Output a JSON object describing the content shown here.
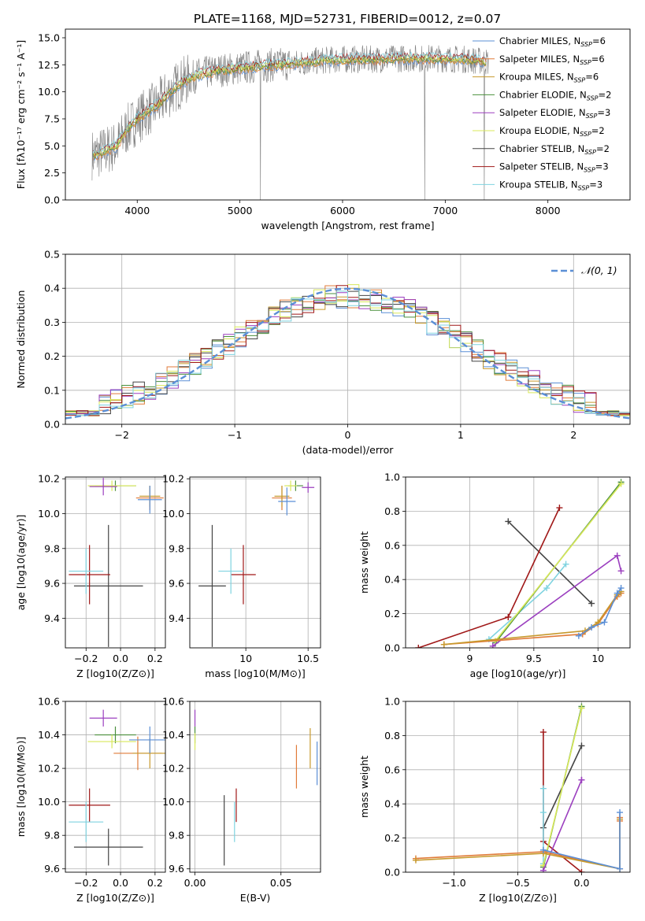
{
  "page_title": "PLATE=1168, MJD=52731, FIBERID=0012, z=0.07",
  "colors": {
    "chabrier_miles": "#5b8fd6",
    "salpeter_miles": "#e07b39",
    "kroupa_miles": "#c79a2e",
    "chabrier_elodie": "#4a8f3c",
    "salpeter_elodie": "#9b3fbf",
    "kroupa_elodie": "#d8e85a",
    "chabrier_stelib": "#444444",
    "salpeter_stelib": "#a01818",
    "kroupa_stelib": "#7fd3e0",
    "data": "#808080",
    "normal": "#5b8fd6",
    "grid": "#b0b0b0"
  },
  "chart_data": [
    {
      "id": "spectrum",
      "type": "line",
      "xlabel": "wavelength [Angstrom, rest frame]",
      "ylabel": "Flux [fλ10⁻¹⁷ erg cm⁻² s⁻¹ A⁻¹]",
      "xlim": [
        3300,
        8800
      ],
      "ylim": [
        0,
        15.8
      ],
      "xticks": [
        4000,
        5000,
        6000,
        7000,
        8000
      ],
      "yticks": [
        0.0,
        2.5,
        5.0,
        7.5,
        10.0,
        12.5,
        15.0
      ],
      "grid": false,
      "legend_position": "right",
      "legend": [
        "Chabrier MILES, N_SSP=6",
        "Salpeter MILES, N_SSP=6",
        "Kroupa MILES, N_SSP=6",
        "Chabrier ELODIE, N_SSP=2",
        "Salpeter ELODIE, N_SSP=3",
        "Kroupa ELODIE, N_SSP=2",
        "Chabrier STELIB, N_SSP=2",
        "Salpeter STELIB, N_SSP=3",
        "Kroupa STELIB, N_SSP=3"
      ],
      "legend_sub": [
        "SSP",
        "SSP",
        "SSP",
        "SSP",
        "SSP",
        "SSP",
        "SSP",
        "SSP",
        "SSP"
      ],
      "legend_prefix": [
        "Chabrier MILES, N",
        "Salpeter MILES, N",
        "Kroupa MILES, N",
        "Chabrier ELODIE, N",
        "Salpeter ELODIE, N",
        "Kroupa ELODIE, N",
        "Chabrier STELIB, N",
        "Salpeter STELIB, N",
        "Kroupa STELIB, N"
      ],
      "legend_suffix": [
        "=6",
        "=6",
        "=6",
        "=2",
        "=3",
        "=2",
        "=2",
        "=3",
        "=3"
      ],
      "continuum": {
        "x": [
          3600,
          3700,
          3800,
          3900,
          4000,
          4100,
          4200,
          4300,
          4400,
          4500,
          4600,
          4800,
          5000,
          5200,
          5500,
          5800,
          6000,
          6300,
          6600,
          6900,
          7200,
          7400
        ],
        "y": [
          4.2,
          4.6,
          5.0,
          6.5,
          7.5,
          8.2,
          8.8,
          9.8,
          10.6,
          11.2,
          11.6,
          12.0,
          12.2,
          12.4,
          12.6,
          12.9,
          13.0,
          13.0,
          13.1,
          13.1,
          13.0,
          12.8
        ]
      },
      "drops": [
        5200,
        6800,
        7380
      ]
    },
    {
      "id": "residuals",
      "type": "line",
      "xlabel": "(data-model)/error",
      "ylabel": "Normed distribution",
      "xlim": [
        -2.5,
        2.5
      ],
      "ylim": [
        0,
        0.5
      ],
      "xticks": [
        -2,
        -1,
        0,
        1,
        2
      ],
      "xtick_labels": [
        "−2",
        "−1",
        "0",
        "1",
        "2"
      ],
      "yticks": [
        0.0,
        0.1,
        0.2,
        0.3,
        0.4,
        0.5
      ],
      "grid": true,
      "legend_position": "top-right",
      "legend": [
        "𝒩(0, 1)"
      ],
      "bin_width": 0.1
    },
    {
      "id": "age_vs_Z",
      "type": "scatter",
      "xlabel": "Z [log10(Z/Z⊙)]",
      "ylabel": "age  [log10(age/yr)]",
      "xlim": [
        -0.32,
        0.26
      ],
      "ylim": [
        9.23,
        10.21
      ],
      "xticks": [
        -0.2,
        0.0,
        0.2
      ],
      "xtick_labels": [
        "−0.2",
        "0.0",
        "0.2"
      ],
      "yticks": [
        9.4,
        9.6,
        9.8,
        10.0,
        10.2
      ],
      "grid": true,
      "points": [
        {
          "series": "chabrier_stelib",
          "x": -0.07,
          "y": 9.585,
          "xerr": 0.2,
          "yerr": 0.35
        },
        {
          "series": "salpeter_stelib",
          "x": -0.18,
          "y": 9.65,
          "xerr": 0.12,
          "yerr": 0.17
        },
        {
          "series": "kroupa_stelib",
          "x": -0.2,
          "y": 9.67,
          "xerr": 0.1,
          "yerr": 0.13
        },
        {
          "series": "chabrier_elodie",
          "x": -0.03,
          "y": 10.16,
          "xerr": 0.12,
          "yerr": 0.03
        },
        {
          "series": "kroupa_elodie",
          "x": -0.05,
          "y": 10.16,
          "xerr": 0.14,
          "yerr": 0.03
        },
        {
          "series": "salpeter_elodie",
          "x": -0.1,
          "y": 10.155,
          "xerr": 0.08,
          "yerr": 0.05
        },
        {
          "series": "salpeter_miles",
          "x": 0.17,
          "y": 10.09,
          "xerr": 0.08,
          "yerr": 0.07
        },
        {
          "series": "kroupa_miles",
          "x": 0.17,
          "y": 10.1,
          "xerr": 0.06,
          "yerr": 0.06
        },
        {
          "series": "chabrier_miles",
          "x": 0.17,
          "y": 10.08,
          "xerr": 0.07,
          "yerr": 0.08
        }
      ]
    },
    {
      "id": "age_vs_mass",
      "type": "scatter",
      "xlabel": "mass [log10(M/M⊙)]",
      "ylabel": "",
      "xlim": [
        9.55,
        10.6
      ],
      "ylim": [
        9.23,
        10.21
      ],
      "xticks": [
        10.0,
        10.5
      ],
      "yticks": [
        9.4,
        9.6,
        9.8,
        10.0,
        10.2
      ],
      "grid": true,
      "points": [
        {
          "series": "chabrier_stelib",
          "x": 9.73,
          "y": 9.585,
          "xerr": 0.11,
          "yerr": 0.35
        },
        {
          "series": "salpeter_stelib",
          "x": 9.98,
          "y": 9.65,
          "xerr": 0.1,
          "yerr": 0.17
        },
        {
          "series": "kroupa_stelib",
          "x": 9.88,
          "y": 9.67,
          "xerr": 0.1,
          "yerr": 0.13
        },
        {
          "series": "chabrier_elodie",
          "x": 10.4,
          "y": 10.16,
          "xerr": 0.06,
          "yerr": 0.03
        },
        {
          "series": "kroupa_elodie",
          "x": 10.36,
          "y": 10.16,
          "xerr": 0.05,
          "yerr": 0.03
        },
        {
          "series": "salpeter_elodie",
          "x": 10.5,
          "y": 10.15,
          "xerr": 0.05,
          "yerr": 0.03
        },
        {
          "series": "salpeter_miles",
          "x": 10.29,
          "y": 10.09,
          "xerr": 0.08,
          "yerr": 0.07
        },
        {
          "series": "kroupa_miles",
          "x": 10.29,
          "y": 10.1,
          "xerr": 0.06,
          "yerr": 0.06
        },
        {
          "series": "chabrier_miles",
          "x": 10.33,
          "y": 10.07,
          "xerr": 0.07,
          "yerr": 0.08
        }
      ]
    },
    {
      "id": "weight_vs_age",
      "type": "line",
      "xlabel": "age  [log10(age/yr)]",
      "ylabel": "mass weight",
      "xlim": [
        8.5,
        10.25
      ],
      "ylim": [
        0,
        1.0
      ],
      "xticks": [
        9.0,
        9.5,
        10.0
      ],
      "yticks": [
        0.0,
        0.2,
        0.4,
        0.6,
        0.8,
        1.0
      ],
      "grid": true,
      "series": [
        {
          "name": "chabrier_stelib",
          "x": [
            9.3,
            9.95
          ],
          "y": [
            0.74,
            0.26
          ]
        },
        {
          "name": "salpeter_stelib",
          "x": [
            8.6,
            9.3,
            9.7
          ],
          "y": [
            0.0,
            0.18,
            0.82
          ]
        },
        {
          "name": "kroupa_stelib",
          "x": [
            9.15,
            9.6,
            9.75
          ],
          "y": [
            0.05,
            0.35,
            0.49
          ]
        },
        {
          "name": "chabrier_elodie",
          "x": [
            9.2,
            10.18
          ],
          "y": [
            0.03,
            0.97
          ]
        },
        {
          "name": "kroupa_elodie",
          "x": [
            9.2,
            10.18
          ],
          "y": [
            0.04,
            0.96
          ]
        },
        {
          "name": "salpeter_elodie",
          "x": [
            9.18,
            10.15,
            10.18
          ],
          "y": [
            0.01,
            0.54,
            0.45
          ]
        },
        {
          "name": "salpeter_miles",
          "x": [
            8.8,
            9.88,
            10.0,
            10.15,
            10.18
          ],
          "y": [
            0.02,
            0.08,
            0.14,
            0.3,
            0.32
          ]
        },
        {
          "name": "kroupa_miles",
          "x": [
            8.8,
            9.9,
            10.0,
            10.15,
            10.18
          ],
          "y": [
            0.02,
            0.1,
            0.15,
            0.31,
            0.33
          ]
        },
        {
          "name": "chabrier_miles",
          "x": [
            9.85,
            9.95,
            10.05,
            10.15,
            10.18
          ],
          "y": [
            0.07,
            0.12,
            0.15,
            0.32,
            0.35
          ]
        }
      ]
    },
    {
      "id": "mass_vs_Z",
      "type": "scatter",
      "xlabel": "Z [log10(Z/Z⊙)]",
      "ylabel": "mass [log10(M/M⊙)]",
      "xlim": [
        -0.32,
        0.26
      ],
      "ylim": [
        9.58,
        10.6
      ],
      "xticks": [
        -0.2,
        0.0,
        0.2
      ],
      "xtick_labels": [
        "−0.2",
        "0.0",
        "0.2"
      ],
      "yticks": [
        9.6,
        9.8,
        10.0,
        10.2,
        10.4,
        10.6
      ],
      "grid": true,
      "points": [
        {
          "series": "chabrier_stelib",
          "x": -0.07,
          "y": 9.73,
          "xerr": 0.2,
          "yerr": 0.11
        },
        {
          "series": "salpeter_stelib",
          "x": -0.18,
          "y": 9.98,
          "xerr": 0.12,
          "yerr": 0.1
        },
        {
          "series": "kroupa_stelib",
          "x": -0.2,
          "y": 9.88,
          "xerr": 0.1,
          "yerr": 0.12
        },
        {
          "series": "chabrier_elodie",
          "x": -0.03,
          "y": 10.4,
          "xerr": 0.12,
          "yerr": 0.05
        },
        {
          "series": "kroupa_elodie",
          "x": -0.05,
          "y": 10.36,
          "xerr": 0.14,
          "yerr": 0.04
        },
        {
          "series": "salpeter_elodie",
          "x": -0.1,
          "y": 10.5,
          "xerr": 0.08,
          "yerr": 0.05
        },
        {
          "series": "salpeter_miles",
          "x": 0.1,
          "y": 10.29,
          "xerr": 0.14,
          "yerr": 0.1
        },
        {
          "series": "kroupa_miles",
          "x": 0.17,
          "y": 10.29,
          "xerr": 0.1,
          "yerr": 0.09
        },
        {
          "series": "chabrier_miles",
          "x": 0.17,
          "y": 10.37,
          "xerr": 0.12,
          "yerr": 0.08
        }
      ]
    },
    {
      "id": "mass_vs_ebv",
      "type": "scatter",
      "xlabel": "E(B-V)",
      "ylabel": "",
      "xlim": [
        -0.003,
        0.073
      ],
      "ylim": [
        9.58,
        10.6
      ],
      "xticks": [
        0.0,
        0.05
      ],
      "xtick_labels": [
        "0.00",
        "0.05"
      ],
      "yticks": [
        9.6,
        9.8,
        10.0,
        10.2,
        10.4,
        10.6
      ],
      "grid": true,
      "points": [
        {
          "series": "chabrier_stelib",
          "x": 0.017,
          "y": 9.83,
          "xerr": 0,
          "yerr": 0.21
        },
        {
          "series": "salpeter_stelib",
          "x": 0.024,
          "y": 9.98,
          "xerr": 0,
          "yerr": 0.1
        },
        {
          "series": "kroupa_stelib",
          "x": 0.023,
          "y": 9.88,
          "xerr": 0,
          "yerr": 0.12
        },
        {
          "series": "chabrier_elodie",
          "x": 0.0,
          "y": 10.4,
          "xerr": 0,
          "yerr": 0.05
        },
        {
          "series": "kroupa_elodie",
          "x": 0.0,
          "y": 10.36,
          "xerr": 0,
          "yerr": 0.05
        },
        {
          "series": "salpeter_elodie",
          "x": 0.0,
          "y": 10.5,
          "xerr": 0,
          "yerr": 0.05
        },
        {
          "series": "salpeter_miles",
          "x": 0.059,
          "y": 10.21,
          "xerr": 0,
          "yerr": 0.13
        },
        {
          "series": "kroupa_miles",
          "x": 0.067,
          "y": 10.32,
          "xerr": 0,
          "yerr": 0.12
        },
        {
          "series": "chabrier_miles",
          "x": 0.071,
          "y": 10.23,
          "xerr": 0,
          "yerr": 0.13
        }
      ]
    },
    {
      "id": "weight_vs_Z",
      "type": "line",
      "xlabel": "Z [log10(Z/Z⊙)]",
      "ylabel": "mass weight",
      "xlim": [
        -1.38,
        0.38
      ],
      "ylim": [
        0,
        1.0
      ],
      "xticks": [
        -1.0,
        -0.5,
        0.0
      ],
      "xtick_labels": [
        "−1.0",
        "−0.5",
        "0.0"
      ],
      "yticks": [
        0.0,
        0.2,
        0.4,
        0.6,
        0.8,
        1.0
      ],
      "grid": true,
      "series": [
        {
          "name": "chabrier_stelib",
          "x": [
            -0.3,
            0.0
          ],
          "y": [
            0.26,
            0.74
          ]
        },
        {
          "name": "salpeter_stelib",
          "x": [
            -0.3,
            -0.3,
            0.0
          ],
          "y": [
            0.82,
            0.18,
            0.0
          ]
        },
        {
          "name": "kroupa_stelib",
          "x": [
            -0.3,
            -0.3,
            -0.3
          ],
          "y": [
            0.49,
            0.35,
            0.05
          ]
        },
        {
          "name": "chabrier_elodie",
          "x": [
            -0.3,
            0.0
          ],
          "y": [
            0.03,
            0.97
          ]
        },
        {
          "name": "kroupa_elodie",
          "x": [
            -0.3,
            0.0
          ],
          "y": [
            0.04,
            0.96
          ]
        },
        {
          "name": "salpeter_elodie",
          "x": [
            -0.3,
            0.0,
            0.0
          ],
          "y": [
            0.01,
            0.54,
            0.54
          ]
        },
        {
          "name": "salpeter_miles",
          "x": [
            -1.3,
            -0.3,
            0.3,
            0.3,
            0.3
          ],
          "y": [
            0.08,
            0.12,
            0.02,
            0.3,
            0.32
          ]
        },
        {
          "name": "kroupa_miles",
          "x": [
            -1.3,
            -0.3,
            0.3,
            0.3
          ],
          "y": [
            0.07,
            0.11,
            0.02,
            0.31
          ]
        },
        {
          "name": "chabrier_miles",
          "x": [
            -0.3,
            0.3,
            0.3
          ],
          "y": [
            0.13,
            0.02,
            0.35
          ]
        }
      ]
    }
  ]
}
